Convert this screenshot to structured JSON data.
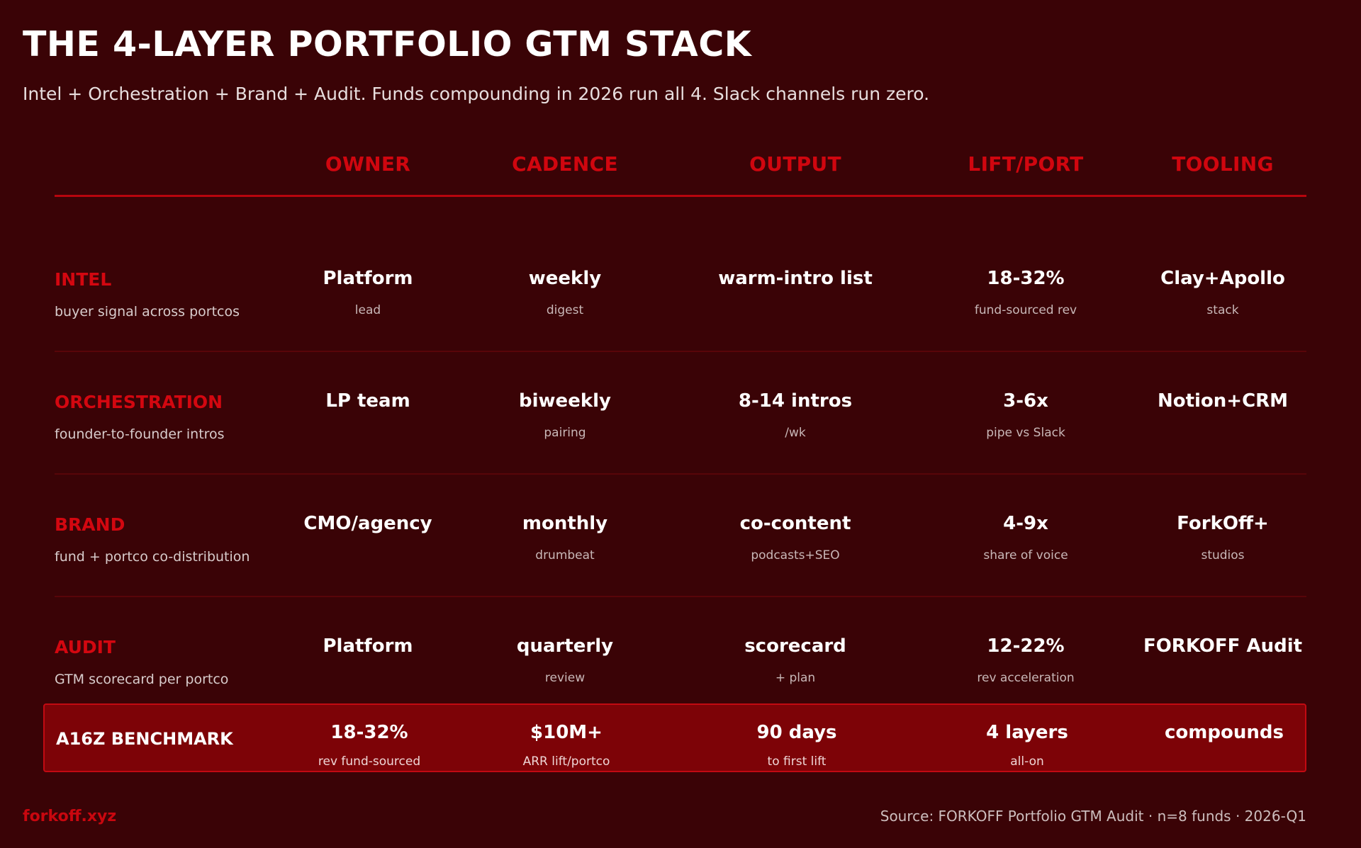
{
  "title": "THE 4-LAYER PORTFOLIO GTM STACK",
  "subtitle": "Intel + Orchestration + Brand + Audit. Funds compounding in 2026 run all 4. Slack channels run zero.",
  "columns": [
    "OWNER",
    "CADENCE",
    "OUTPUT",
    "LIFT/PORT",
    "TOOLING"
  ],
  "rows": [
    {
      "name": "INTEL",
      "desc": "buyer signal across portcos",
      "cells": [
        {
          "main": "Platform",
          "sub": "lead"
        },
        {
          "main": "weekly",
          "sub": "digest"
        },
        {
          "main": "warm-intro list",
          "sub": ""
        },
        {
          "main": "18-32%",
          "sub": "fund-sourced rev"
        },
        {
          "main": "Clay+Apollo",
          "sub": "stack"
        }
      ]
    },
    {
      "name": "ORCHESTRATION",
      "desc": "founder-to-founder intros",
      "cells": [
        {
          "main": "LP team",
          "sub": ""
        },
        {
          "main": "biweekly",
          "sub": "pairing"
        },
        {
          "main": "8-14 intros",
          "sub": "/wk"
        },
        {
          "main": "3-6x",
          "sub": "pipe vs Slack"
        },
        {
          "main": "Notion+CRM",
          "sub": ""
        }
      ]
    },
    {
      "name": "BRAND",
      "desc": "fund + portco co-distribution",
      "cells": [
        {
          "main": "CMO/agency",
          "sub": ""
        },
        {
          "main": "monthly",
          "sub": "drumbeat"
        },
        {
          "main": "co-content",
          "sub": "podcasts+SEO"
        },
        {
          "main": "4-9x",
          "sub": "share of voice"
        },
        {
          "main": "ForkOff+",
          "sub": "studios"
        }
      ]
    },
    {
      "name": "AUDIT",
      "desc": "GTM scorecard per portco",
      "cells": [
        {
          "main": "Platform",
          "sub": ""
        },
        {
          "main": "quarterly",
          "sub": "review"
        },
        {
          "main": "scorecard",
          "sub": "+ plan"
        },
        {
          "main": "12-22%",
          "sub": "rev acceleration"
        },
        {
          "main": "FORKOFF Audit",
          "sub": ""
        }
      ]
    }
  ],
  "benchmark": {
    "name": "A16Z BENCHMARK",
    "cells": [
      {
        "main": "18-32%",
        "sub": "rev fund-sourced"
      },
      {
        "main": "$10M+",
        "sub": "ARR lift/portco"
      },
      {
        "main": "90 days",
        "sub": "to first lift"
      },
      {
        "main": "4 layers",
        "sub": "all-on"
      },
      {
        "main": "compounds",
        "sub": ""
      }
    ]
  },
  "footer": {
    "brand": "forkoff.xyz",
    "source": "Source: FORKOFF Portfolio GTM Audit · n=8 funds · 2026-Q1"
  }
}
